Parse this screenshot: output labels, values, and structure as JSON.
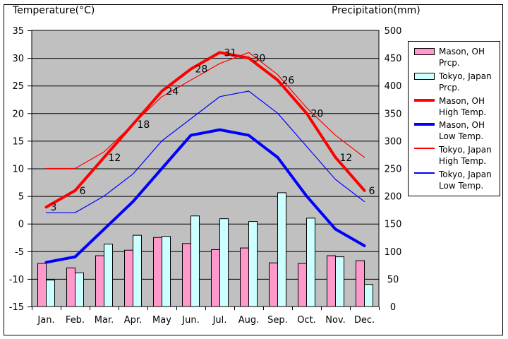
{
  "chart_data": {
    "type": "combo bar+line climate chart",
    "title": "",
    "categories": [
      "Jan.",
      "Feb.",
      "Mar.",
      "Apr.",
      "May",
      "Jun.",
      "Jul.",
      "Aug.",
      "Sep.",
      "Oct.",
      "Nov.",
      "Dec."
    ],
    "left_axis": {
      "label": "Temperature(°C)",
      "min": -15,
      "max": 35,
      "ticks": [
        35,
        30,
        25,
        20,
        15,
        10,
        5,
        0,
        -5,
        -10,
        -15
      ]
    },
    "right_axis": {
      "label": "Precipitation(mm)",
      "min": 0,
      "max": 500,
      "ticks": [
        500,
        450,
        400,
        350,
        300,
        250,
        200,
        150,
        100,
        50,
        0
      ]
    },
    "plot_background": "#c0c0c0",
    "grid": "horizontal gridlines every 5°C / 50mm",
    "legend_position": "right",
    "series": [
      {
        "name": "Mason, OH Prcp.",
        "type": "bar",
        "axis": "right",
        "color": "#ff99cc",
        "values": [
          78,
          70,
          92,
          102,
          125,
          114,
          103,
          106,
          79,
          78,
          92,
          83
        ]
      },
      {
        "name": "Tokyo, Japan Prcp.",
        "type": "bar",
        "axis": "right",
        "color": "#ccffff",
        "values": [
          48,
          61,
          113,
          129,
          127,
          164,
          159,
          154,
          206,
          160,
          90,
          40
        ]
      },
      {
        "name": "Mason, OH High Temp.",
        "type": "line",
        "axis": "left",
        "color": "#ff0000",
        "stroke_width": 4,
        "show_point_labels": true,
        "values": [
          3,
          6,
          12,
          18,
          24,
          28,
          31,
          30,
          26,
          20,
          12,
          6
        ],
        "point_labels": [
          "3",
          "6",
          "12",
          "18",
          "24",
          "28",
          "31",
          "30",
          "26",
          "20",
          "12",
          "6"
        ]
      },
      {
        "name": "Mason, OH Low Temp.",
        "type": "line",
        "axis": "left",
        "color": "#0000ff",
        "stroke_width": 4,
        "show_point_labels": false,
        "values": [
          -7,
          -6,
          -1,
          4,
          10,
          16,
          17,
          16,
          12,
          5,
          -1,
          -4
        ]
      },
      {
        "name": "Tokyo, Japan High Temp.",
        "type": "line",
        "axis": "left",
        "color": "#ff0000",
        "stroke_width": 1.2,
        "show_point_labels": false,
        "values": [
          10,
          10,
          13,
          18,
          23,
          26,
          29,
          31,
          27,
          21,
          16,
          12
        ]
      },
      {
        "name": "Tokyo, Japan Low Temp.",
        "type": "line",
        "axis": "left",
        "color": "#0000ff",
        "stroke_width": 1.2,
        "show_point_labels": false,
        "values": [
          2,
          2,
          5,
          9,
          15,
          19,
          23,
          24,
          20,
          14,
          8,
          4
        ]
      }
    ],
    "colors": {
      "mason_prcp_bar": "#ff99cc",
      "tokyo_prcp_bar": "#ccffff",
      "high_temp_line": "#ff0000",
      "low_temp_line": "#0000ff",
      "plot_background": "#c0c0c0",
      "gridline": "#000000",
      "text": "#000000"
    }
  }
}
